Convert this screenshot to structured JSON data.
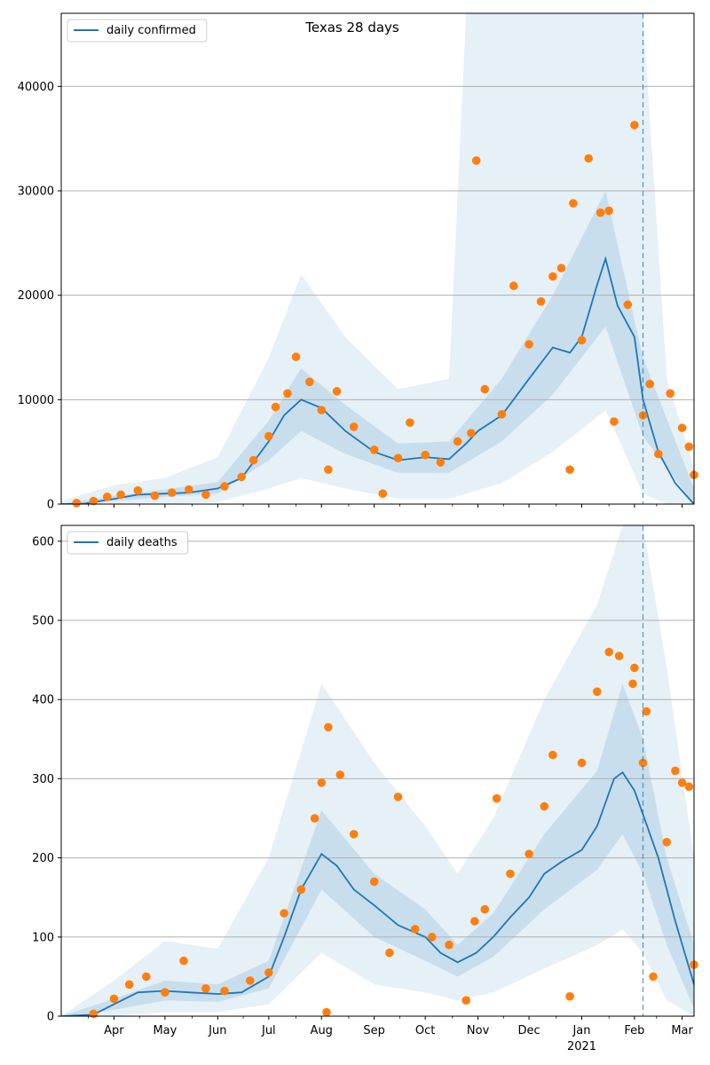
{
  "title": "Texas 28 days",
  "colors": {
    "line": "#1f77b4",
    "points": "#ff7f0e",
    "band": "#1f77b4",
    "grid": "#b0b0b0"
  },
  "x_axis": {
    "date_range": [
      "2020-03-01",
      "2021-03-08"
    ],
    "tick_labels": [
      "Apr",
      "May",
      "Jun",
      "Jul",
      "Aug",
      "Sep",
      "Oct",
      "Nov",
      "Dec",
      "Jan",
      "Feb",
      "Mar"
    ],
    "tick_dates": [
      "2020-04-01",
      "2020-05-01",
      "2020-06-01",
      "2020-07-01",
      "2020-08-01",
      "2020-09-01",
      "2020-10-01",
      "2020-11-01",
      "2020-12-01",
      "2021-01-01",
      "2021-02-01",
      "2021-03-01"
    ],
    "year_label": "2021",
    "year_date": "2021-01-01"
  },
  "chart_data": [
    {
      "type": "line",
      "legend": "daily confirmed",
      "ylim": [
        0,
        47000
      ],
      "yticks": [
        0,
        10000,
        20000,
        30000,
        40000
      ],
      "grid": "horizontal",
      "legend_position": "top-left",
      "marker_date": "2021-02-06",
      "line_points": [
        [
          "2020-03-01",
          0
        ],
        [
          "2020-03-15",
          50
        ],
        [
          "2020-04-01",
          500
        ],
        [
          "2020-04-15",
          900
        ],
        [
          "2020-05-01",
          1000
        ],
        [
          "2020-05-15",
          1100
        ],
        [
          "2020-06-01",
          1500
        ],
        [
          "2020-06-15",
          2500
        ],
        [
          "2020-07-01",
          6000
        ],
        [
          "2020-07-10",
          8500
        ],
        [
          "2020-07-20",
          10000
        ],
        [
          "2020-08-01",
          9200
        ],
        [
          "2020-08-15",
          7000
        ],
        [
          "2020-09-01",
          5000
        ],
        [
          "2020-09-15",
          4200
        ],
        [
          "2020-10-01",
          4500
        ],
        [
          "2020-10-15",
          4300
        ],
        [
          "2020-10-25",
          5800
        ],
        [
          "2020-11-01",
          7000
        ],
        [
          "2020-11-15",
          8500
        ],
        [
          "2020-12-01",
          12000
        ],
        [
          "2020-12-15",
          15000
        ],
        [
          "2020-12-25",
          14500
        ],
        [
          "2021-01-01",
          16000
        ],
        [
          "2021-01-10",
          21000
        ],
        [
          "2021-01-15",
          23500
        ],
        [
          "2021-01-22",
          19000
        ],
        [
          "2021-02-01",
          16000
        ],
        [
          "2021-02-06",
          10000
        ],
        [
          "2021-02-15",
          5000
        ],
        [
          "2021-02-25",
          2000
        ],
        [
          "2021-03-08",
          0
        ]
      ],
      "band_inner": [
        [
          "2020-03-01",
          0,
          0
        ],
        [
          "2020-04-01",
          300,
          800
        ],
        [
          "2020-05-01",
          700,
          1400
        ],
        [
          "2020-06-01",
          1000,
          2100
        ],
        [
          "2020-07-01",
          4200,
          8000
        ],
        [
          "2020-07-20",
          7000,
          13000
        ],
        [
          "2020-08-15",
          4800,
          9500
        ],
        [
          "2020-09-15",
          3000,
          5800
        ],
        [
          "2020-10-15",
          3000,
          6000
        ],
        [
          "2020-11-15",
          6000,
          12000
        ],
        [
          "2020-12-15",
          10500,
          20000
        ],
        [
          "2021-01-15",
          17000,
          30000
        ],
        [
          "2021-02-06",
          6500,
          14000
        ],
        [
          "2021-03-08",
          0,
          1500
        ]
      ],
      "band_outer": [
        [
          "2020-03-01",
          0,
          300
        ],
        [
          "2020-04-01",
          0,
          1800
        ],
        [
          "2020-05-01",
          0,
          2500
        ],
        [
          "2020-06-01",
          200,
          4500
        ],
        [
          "2020-07-01",
          1500,
          14000
        ],
        [
          "2020-07-20",
          2500,
          22000
        ],
        [
          "2020-08-15",
          1500,
          16000
        ],
        [
          "2020-09-15",
          500,
          11000
        ],
        [
          "2020-10-15",
          500,
          12000
        ],
        [
          "2020-10-25",
          1000,
          47000
        ],
        [
          "2020-11-15",
          2000,
          47000
        ],
        [
          "2020-12-15",
          5000,
          47000
        ],
        [
          "2021-01-15",
          9000,
          47000
        ],
        [
          "2021-02-06",
          1000,
          47000
        ],
        [
          "2021-02-20",
          0,
          12000
        ],
        [
          "2021-03-08",
          0,
          3500
        ]
      ],
      "observed": [
        [
          "2020-03-10",
          100
        ],
        [
          "2020-03-20",
          300
        ],
        [
          "2020-03-28",
          700
        ],
        [
          "2020-04-05",
          900
        ],
        [
          "2020-04-15",
          1300
        ],
        [
          "2020-04-25",
          800
        ],
        [
          "2020-05-05",
          1100
        ],
        [
          "2020-05-15",
          1400
        ],
        [
          "2020-05-25",
          900
        ],
        [
          "2020-06-05",
          1700
        ],
        [
          "2020-06-15",
          2600
        ],
        [
          "2020-06-22",
          4200
        ],
        [
          "2020-07-01",
          6500
        ],
        [
          "2020-07-05",
          9300
        ],
        [
          "2020-07-12",
          10600
        ],
        [
          "2020-07-17",
          14100
        ],
        [
          "2020-07-25",
          11700
        ],
        [
          "2020-08-01",
          9000
        ],
        [
          "2020-08-05",
          3300
        ],
        [
          "2020-08-10",
          10800
        ],
        [
          "2020-08-20",
          7400
        ],
        [
          "2020-09-01",
          5200
        ],
        [
          "2020-09-06",
          1000
        ],
        [
          "2020-09-15",
          4400
        ],
        [
          "2020-09-22",
          7800
        ],
        [
          "2020-10-01",
          4700
        ],
        [
          "2020-10-10",
          4000
        ],
        [
          "2020-10-20",
          6000
        ],
        [
          "2020-10-28",
          6800
        ],
        [
          "2020-10-31",
          32900
        ],
        [
          "2020-11-05",
          11000
        ],
        [
          "2020-11-15",
          8600
        ],
        [
          "2020-11-22",
          20900
        ],
        [
          "2020-12-01",
          15300
        ],
        [
          "2020-12-08",
          19400
        ],
        [
          "2020-12-15",
          21800
        ],
        [
          "2020-12-20",
          22600
        ],
        [
          "2020-12-25",
          3300
        ],
        [
          "2020-12-27",
          28800
        ],
        [
          "2021-01-01",
          15700
        ],
        [
          "2021-01-05",
          33100
        ],
        [
          "2021-01-12",
          27900
        ],
        [
          "2021-01-17",
          28100
        ],
        [
          "2021-01-20",
          7900
        ],
        [
          "2021-01-28",
          19100
        ],
        [
          "2021-02-01",
          36300
        ],
        [
          "2021-02-06",
          8500
        ],
        [
          "2021-02-10",
          11500
        ],
        [
          "2021-02-15",
          4800
        ],
        [
          "2021-02-22",
          10600
        ],
        [
          "2021-03-01",
          7300
        ],
        [
          "2021-03-05",
          5500
        ],
        [
          "2021-03-08",
          2800
        ]
      ]
    },
    {
      "type": "line",
      "legend": "daily deaths",
      "ylim": [
        0,
        620
      ],
      "yticks": [
        0,
        100,
        200,
        300,
        400,
        500,
        600
      ],
      "grid": "horizontal",
      "legend_position": "top-left",
      "marker_date": "2021-02-06",
      "line_points": [
        [
          "2020-03-01",
          0
        ],
        [
          "2020-03-20",
          2
        ],
        [
          "2020-04-01",
          15
        ],
        [
          "2020-04-15",
          30
        ],
        [
          "2020-05-01",
          32
        ],
        [
          "2020-05-15",
          30
        ],
        [
          "2020-06-01",
          28
        ],
        [
          "2020-06-15",
          30
        ],
        [
          "2020-07-01",
          50
        ],
        [
          "2020-07-10",
          100
        ],
        [
          "2020-07-20",
          160
        ],
        [
          "2020-08-01",
          205
        ],
        [
          "2020-08-10",
          190
        ],
        [
          "2020-08-20",
          160
        ],
        [
          "2020-09-01",
          140
        ],
        [
          "2020-09-15",
          115
        ],
        [
          "2020-10-01",
          100
        ],
        [
          "2020-10-10",
          80
        ],
        [
          "2020-10-20",
          68
        ],
        [
          "2020-10-31",
          80
        ],
        [
          "2020-11-10",
          100
        ],
        [
          "2020-11-20",
          125
        ],
        [
          "2020-12-01",
          150
        ],
        [
          "2020-12-10",
          180
        ],
        [
          "2020-12-20",
          195
        ],
        [
          "2021-01-01",
          210
        ],
        [
          "2021-01-10",
          240
        ],
        [
          "2021-01-20",
          300
        ],
        [
          "2021-01-25",
          308
        ],
        [
          "2021-02-01",
          285
        ],
        [
          "2021-02-06",
          255
        ],
        [
          "2021-02-15",
          200
        ],
        [
          "2021-02-25",
          120
        ],
        [
          "2021-03-08",
          40
        ]
      ],
      "band_inner": [
        [
          "2020-03-01",
          0,
          0
        ],
        [
          "2020-04-01",
          8,
          22
        ],
        [
          "2020-05-01",
          20,
          45
        ],
        [
          "2020-06-01",
          18,
          40
        ],
        [
          "2020-07-01",
          35,
          70
        ],
        [
          "2020-08-01",
          160,
          260
        ],
        [
          "2020-09-01",
          100,
          180
        ],
        [
          "2020-10-01",
          70,
          135
        ],
        [
          "2020-10-20",
          50,
          90
        ],
        [
          "2020-11-10",
          75,
          130
        ],
        [
          "2020-12-10",
          135,
          230
        ],
        [
          "2021-01-10",
          185,
          310
        ],
        [
          "2021-01-25",
          230,
          420
        ],
        [
          "2021-02-06",
          180,
          350
        ],
        [
          "2021-02-20",
          90,
          200
        ],
        [
          "2021-03-08",
          10,
          90
        ]
      ],
      "band_outer": [
        [
          "2020-03-01",
          0,
          0
        ],
        [
          "2020-04-01",
          0,
          45
        ],
        [
          "2020-05-01",
          5,
          95
        ],
        [
          "2020-06-01",
          5,
          85
        ],
        [
          "2020-07-01",
          15,
          200
        ],
        [
          "2020-08-01",
          80,
          420
        ],
        [
          "2020-09-01",
          40,
          320
        ],
        [
          "2020-10-01",
          30,
          240
        ],
        [
          "2020-10-20",
          20,
          180
        ],
        [
          "2020-11-10",
          30,
          250
        ],
        [
          "2020-12-10",
          60,
          400
        ],
        [
          "2021-01-10",
          90,
          520
        ],
        [
          "2021-01-25",
          110,
          620
        ],
        [
          "2021-02-06",
          80,
          620
        ],
        [
          "2021-02-20",
          20,
          440
        ],
        [
          "2021-03-08",
          0,
          200
        ]
      ],
      "observed": [
        [
          "2020-03-20",
          3
        ],
        [
          "2020-04-01",
          22
        ],
        [
          "2020-04-10",
          40
        ],
        [
          "2020-04-20",
          50
        ],
        [
          "2020-05-01",
          30
        ],
        [
          "2020-05-12",
          70
        ],
        [
          "2020-05-25",
          35
        ],
        [
          "2020-06-05",
          32
        ],
        [
          "2020-06-20",
          45
        ],
        [
          "2020-07-01",
          55
        ],
        [
          "2020-07-10",
          130
        ],
        [
          "2020-07-20",
          160
        ],
        [
          "2020-07-28",
          250
        ],
        [
          "2020-08-01",
          295
        ],
        [
          "2020-08-04",
          5
        ],
        [
          "2020-08-05",
          365
        ],
        [
          "2020-08-12",
          305
        ],
        [
          "2020-08-20",
          230
        ],
        [
          "2020-09-01",
          170
        ],
        [
          "2020-09-10",
          80
        ],
        [
          "2020-09-15",
          277
        ],
        [
          "2020-09-25",
          110
        ],
        [
          "2020-10-05",
          100
        ],
        [
          "2020-10-15",
          90
        ],
        [
          "2020-10-25",
          20
        ],
        [
          "2020-10-30",
          120
        ],
        [
          "2020-11-05",
          135
        ],
        [
          "2020-11-12",
          275
        ],
        [
          "2020-11-20",
          180
        ],
        [
          "2020-12-01",
          205
        ],
        [
          "2020-12-10",
          265
        ],
        [
          "2020-12-15",
          330
        ],
        [
          "2020-12-25",
          25
        ],
        [
          "2021-01-01",
          320
        ],
        [
          "2021-01-10",
          410
        ],
        [
          "2021-01-17",
          460
        ],
        [
          "2021-01-23",
          455
        ],
        [
          "2021-01-31",
          420
        ],
        [
          "2021-02-01",
          440
        ],
        [
          "2021-02-06",
          320
        ],
        [
          "2021-02-08",
          385
        ],
        [
          "2021-02-12",
          50
        ],
        [
          "2021-02-20",
          220
        ],
        [
          "2021-02-25",
          310
        ],
        [
          "2021-03-01",
          295
        ],
        [
          "2021-03-05",
          290
        ],
        [
          "2021-03-08",
          65
        ]
      ]
    }
  ]
}
